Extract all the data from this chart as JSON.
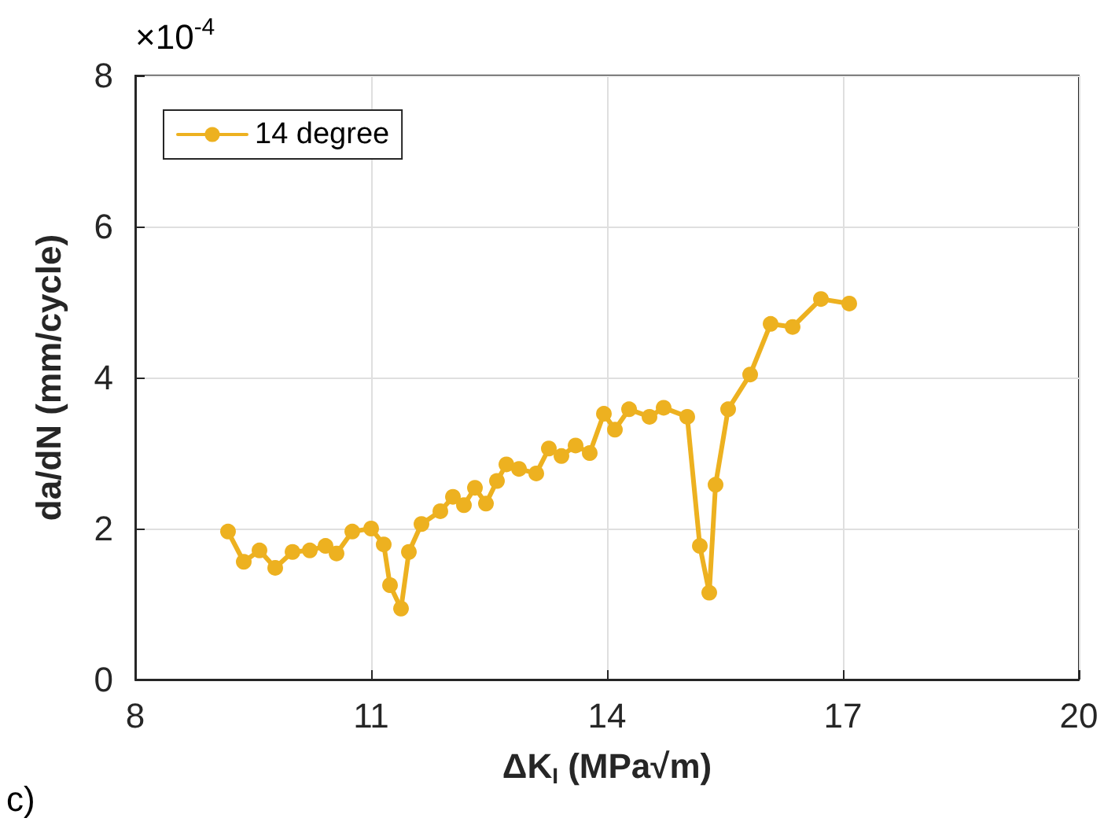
{
  "chart_data": {
    "type": "line",
    "xlabel": "ΔK$_{I}$ (MPa√m)",
    "ylabel": "da/dN (mm/cycle)",
    "xlim": [
      8,
      20
    ],
    "xticks": [
      8,
      11,
      14,
      17,
      20
    ],
    "ylim": [
      0,
      8
    ],
    "yticks": [
      0,
      2,
      4,
      6,
      8
    ],
    "grid": true,
    "legend": "top left",
    "marker": "circle",
    "line_style": "solid",
    "annotations": [
      "×10$^{-4}$",
      "c)"
    ],
    "series": [
      {
        "name": "14 degree",
        "color": "#edb120",
        "x": [
          9.18,
          9.38,
          9.58,
          9.78,
          10.0,
          10.22,
          10.42,
          10.56,
          10.76,
          11.0,
          11.16,
          11.24,
          11.38,
          11.48,
          11.64,
          11.88,
          12.04,
          12.18,
          12.32,
          12.46,
          12.6,
          12.72,
          12.88,
          13.1,
          13.26,
          13.42,
          13.6,
          13.78,
          13.96,
          14.1,
          14.28,
          14.54,
          14.72,
          15.02,
          15.18,
          15.3,
          15.38,
          15.54,
          15.82,
          16.08,
          16.36,
          16.72,
          17.08
        ],
        "values": [
          1.96,
          1.56,
          1.71,
          1.48,
          1.69,
          1.71,
          1.77,
          1.67,
          1.96,
          2.0,
          1.79,
          1.25,
          0.94,
          1.69,
          2.06,
          2.23,
          2.42,
          2.31,
          2.54,
          2.33,
          2.63,
          2.85,
          2.79,
          2.73,
          3.06,
          2.96,
          3.1,
          3.0,
          3.52,
          3.31,
          3.58,
          3.48,
          3.6,
          3.48,
          1.77,
          1.15,
          2.58,
          3.58,
          4.04,
          4.71,
          4.67,
          5.04,
          4.98
        ]
      }
    ]
  }
}
